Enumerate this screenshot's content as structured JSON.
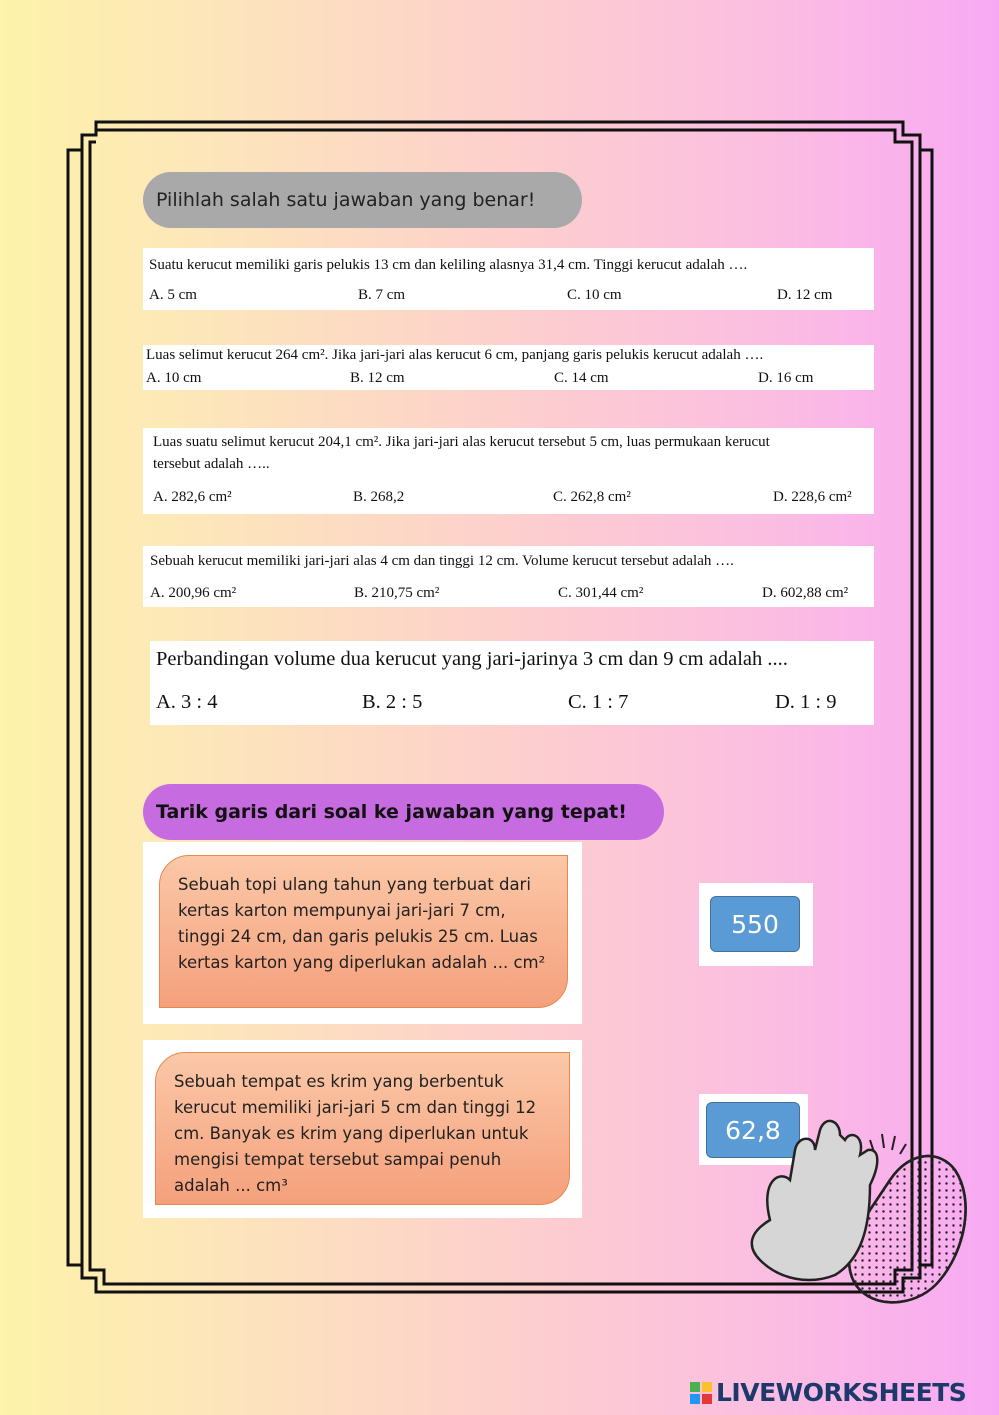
{
  "multiple_choice": {
    "heading": "Pilihlah salah satu jawaban yang benar!",
    "questions": [
      {
        "text": "Suatu kerucut memiliki garis pelukis 13 cm dan keliling alasnya 31,4 cm. Tinggi kerucut adalah ….",
        "options": [
          "A. 5 cm",
          "B.  7 cm",
          "C.  10 cm",
          "D.  12 cm"
        ]
      },
      {
        "text": "Luas selimut kerucut 264 cm². Jika jari-jari alas kerucut 6 cm, panjang garis pelukis kerucut adalah ….",
        "options": [
          "A. 10 cm",
          "B.  12 cm",
          "C.  14 cm",
          "D.  16 cm"
        ]
      },
      {
        "text": "Luas suatu selimut kerucut 204,1 cm². Jika jari-jari alas kerucut tersebut 5 cm, luas permukaan kerucut",
        "text_line2": "tersebut adalah …..",
        "options": [
          "A. 282,6 cm²",
          "B.  268,2",
          "C.  262,8 cm²",
          "D.  228,6 cm²"
        ]
      },
      {
        "text": "Sebuah kerucut memiliki jari-jari alas 4 cm dan tinggi 12 cm. Volume kerucut tersebut adalah ….",
        "options": [
          "A. 200,96 cm²",
          "B.  210,75 cm²",
          "C.  301,44 cm²",
          "D.  602,88 cm²"
        ]
      },
      {
        "text": "Perbandingan volume dua kerucut yang jari-jarinya 3 cm dan 9 cm adalah ....",
        "options": [
          "A.   3 : 4",
          "B.  2 : 5",
          "C.  1 : 7",
          "D.  1 : 9"
        ]
      }
    ]
  },
  "matching": {
    "heading": "Tarik garis dari soal ke jawaban yang tepat!",
    "prompts": [
      "Sebuah topi ulang tahun yang terbuat dari kertas karton mempunyai jari-jari 7 cm, tinggi 24 cm, dan garis pelukis 25 cm.  Luas kertas karton yang diperlukan adalah ... cm²",
      "Sebuah tempat es krim yang berbentuk kerucut memiliki jari-jari 5 cm dan tinggi 12 cm. Banyak es krim yang diperlukan untuk mengisi tempat tersebut sampai penuh adalah ... cm³"
    ],
    "answers": [
      "550",
      "62,8"
    ]
  },
  "branding": {
    "logo": "LIVEWORKSHEETS"
  },
  "colors": {
    "heading1_bg": "#a9a9a9",
    "heading2_bg": "#c76ce0",
    "answer_button": "#5b9bd5",
    "prompt_card": "#f7b08f"
  }
}
